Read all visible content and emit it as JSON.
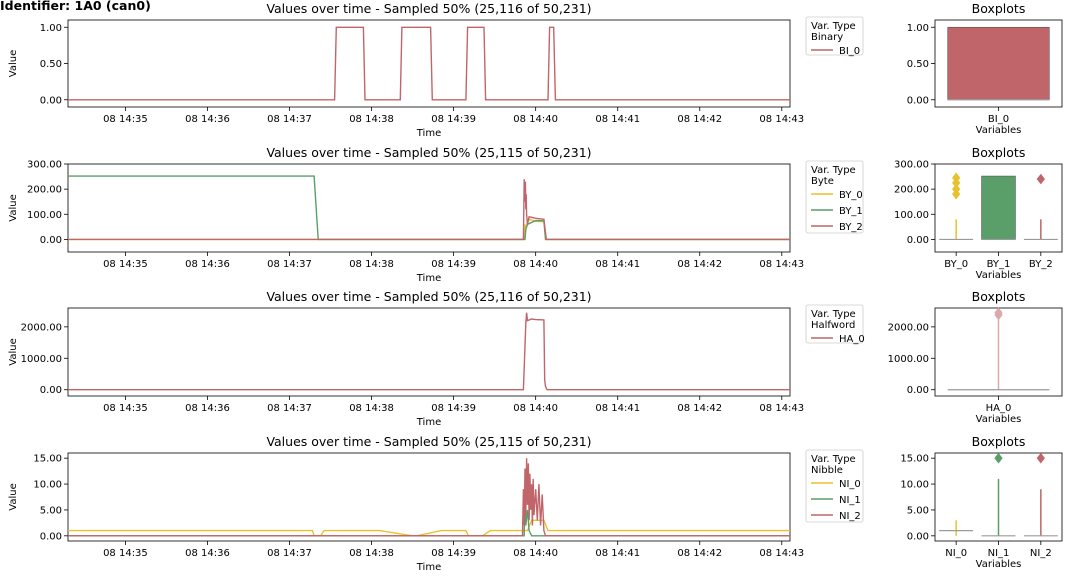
{
  "figure_title": "Identifier: 1A0 (can0)",
  "colors": {
    "yellow": "#e8c22e",
    "green": "#5a9e6a",
    "red": "#c0656a",
    "gray": "#9a9a9a",
    "red_light": "#dba9ab"
  },
  "chart_data": [
    {
      "type": "line",
      "title": "Values over time - Sampled 50% (25,116 of 50,231)",
      "xlabel": "Time",
      "ylabel": "Value",
      "x_unit": "minutes after 08 14:34",
      "x_ticks": [
        "08 14:35",
        "08 14:36",
        "08 14:37",
        "08 14:38",
        "08 14:39",
        "08 14:40",
        "08 14:41",
        "08 14:42",
        "08 14:43"
      ],
      "y_ticks": [
        "0.00",
        "0.50",
        "1.00"
      ],
      "ylim": [
        -0.1,
        1.1
      ],
      "legend": {
        "title": "Var. Type\nBinary",
        "position": "outside-right"
      },
      "series": [
        {
          "name": "BI_0",
          "color": "#c0656a",
          "points": [
            [
              0.3,
              0
            ],
            [
              3.55,
              0
            ],
            [
              3.57,
              1
            ],
            [
              3.9,
              1
            ],
            [
              3.92,
              0
            ],
            [
              4.35,
              0
            ],
            [
              4.37,
              1
            ],
            [
              4.72,
              1
            ],
            [
              4.74,
              0
            ],
            [
              5.15,
              0
            ],
            [
              5.17,
              1
            ],
            [
              5.37,
              1
            ],
            [
              5.39,
              0
            ],
            [
              6.15,
              0
            ],
            [
              6.17,
              1
            ],
            [
              6.22,
              1
            ],
            [
              6.24,
              0
            ],
            [
              9.1,
              0
            ]
          ]
        }
      ]
    },
    {
      "type": "box",
      "title": "Boxplots",
      "xlabel": "Variables",
      "y_ticks": [
        "0.00",
        "0.50",
        "1.00"
      ],
      "ylim": [
        -0.1,
        1.1
      ],
      "boxes": [
        {
          "name": "BI_0",
          "color": "#c0656a",
          "q1": 0,
          "q3": 1,
          "median": 0,
          "fliers": []
        }
      ]
    },
    {
      "type": "line",
      "title": "Values over time - Sampled 50% (25,115 of 50,231)",
      "xlabel": "Time",
      "ylabel": "Value",
      "x_unit": "minutes after 08 14:34",
      "x_ticks": [
        "08 14:35",
        "08 14:36",
        "08 14:37",
        "08 14:38",
        "08 14:39",
        "08 14:40",
        "08 14:41",
        "08 14:42",
        "08 14:43"
      ],
      "y_ticks": [
        "0.00",
        "100.00",
        "200.00",
        "300.00"
      ],
      "ylim": [
        -50,
        300
      ],
      "legend": {
        "title": "Var. Type\nByte",
        "position": "outside-right"
      },
      "series": [
        {
          "name": "BY_0",
          "color": "#e8c22e",
          "points": [
            [
              0.3,
              0
            ],
            [
              5.86,
              0
            ],
            [
              5.87,
              60
            ],
            [
              5.88,
              40
            ],
            [
              5.9,
              70
            ],
            [
              5.93,
              80
            ],
            [
              6.0,
              72
            ],
            [
              6.1,
              70
            ],
            [
              6.13,
              0
            ],
            [
              9.1,
              0
            ]
          ]
        },
        {
          "name": "BY_1",
          "color": "#5a9e6a",
          "points": [
            [
              0.3,
              252
            ],
            [
              3.3,
              252
            ],
            [
              3.35,
              0
            ],
            [
              5.87,
              0
            ],
            [
              5.88,
              40
            ],
            [
              5.9,
              60
            ],
            [
              6.0,
              75
            ],
            [
              6.1,
              74
            ],
            [
              6.12,
              0
            ],
            [
              9.1,
              0
            ]
          ]
        },
        {
          "name": "BY_2",
          "color": "#c0656a",
          "points": [
            [
              0.3,
              0
            ],
            [
              5.85,
              0
            ],
            [
              5.86,
              240
            ],
            [
              5.87,
              150
            ],
            [
              5.875,
              230
            ],
            [
              5.88,
              120
            ],
            [
              5.885,
              180
            ],
            [
              5.89,
              100
            ],
            [
              5.9,
              60
            ],
            [
              5.92,
              90
            ],
            [
              5.95,
              88
            ],
            [
              6.0,
              84
            ],
            [
              6.05,
              82
            ],
            [
              6.1,
              80
            ],
            [
              6.13,
              0
            ],
            [
              9.1,
              0
            ]
          ]
        }
      ]
    },
    {
      "type": "box",
      "title": "Boxplots",
      "xlabel": "Variables",
      "y_ticks": [
        "0.00",
        "100.00",
        "200.00",
        "300.00"
      ],
      "ylim": [
        -50,
        300
      ],
      "boxes": [
        {
          "name": "BY_0",
          "color": "#e8c22e",
          "q1": 0,
          "q3": 0,
          "median": 0,
          "whisker_hi": 80,
          "fliers": [
            180,
            200,
            225,
            245
          ]
        },
        {
          "name": "BY_1",
          "color": "#5a9e6a",
          "q1": 0,
          "q3": 252,
          "median": 0,
          "fliers": []
        },
        {
          "name": "BY_2",
          "color": "#c0656a",
          "q1": 0,
          "q3": 0,
          "median": 0,
          "whisker_hi": 80,
          "fliers": [
            240
          ]
        }
      ]
    },
    {
      "type": "line",
      "title": "Values over time - Sampled 50% (25,116 of 50,231)",
      "xlabel": "Time",
      "ylabel": "Value",
      "x_unit": "minutes after 08 14:34",
      "x_ticks": [
        "08 14:35",
        "08 14:36",
        "08 14:37",
        "08 14:38",
        "08 14:39",
        "08 14:40",
        "08 14:41",
        "08 14:42",
        "08 14:43"
      ],
      "y_ticks": [
        "0.00",
        "1000.00",
        "2000.00"
      ],
      "ylim": [
        -200,
        2600
      ],
      "legend": {
        "title": "Var. Type\nHalfword",
        "position": "outside-right"
      },
      "series": [
        {
          "name": "HA_0",
          "color": "#c0656a",
          "points": [
            [
              0.3,
              0
            ],
            [
              5.85,
              0
            ],
            [
              5.88,
              2100
            ],
            [
              5.89,
              2450
            ],
            [
              5.9,
              2200
            ],
            [
              5.95,
              2250
            ],
            [
              6.0,
              2230
            ],
            [
              6.1,
              2220
            ],
            [
              6.11,
              300
            ],
            [
              6.12,
              100
            ],
            [
              6.14,
              0
            ],
            [
              9.1,
              0
            ]
          ]
        }
      ]
    },
    {
      "type": "box",
      "title": "Boxplots",
      "xlabel": "Variables",
      "y_ticks": [
        "0.00",
        "1000.00",
        "2000.00"
      ],
      "ylim": [
        -200,
        2600
      ],
      "boxes": [
        {
          "name": "HA_0",
          "color": "#dba9ab",
          "q1": 0,
          "q3": 0,
          "median": 0,
          "whisker_hi": 2250,
          "fliers": [
            2380,
            2450
          ]
        }
      ]
    },
    {
      "type": "line",
      "title": "Values over time - Sampled 50% (25,115 of 50,231)",
      "xlabel": "Time",
      "ylabel": "Value",
      "x_unit": "minutes after 08 14:34",
      "x_ticks": [
        "08 14:35",
        "08 14:36",
        "08 14:37",
        "08 14:38",
        "08 14:39",
        "08 14:40",
        "08 14:41",
        "08 14:42",
        "08 14:43"
      ],
      "y_ticks": [
        "0.00",
        "5.00",
        "10.00",
        "15.00"
      ],
      "ylim": [
        -1,
        16
      ],
      "legend": {
        "title": "Var. Type\nNibble",
        "position": "outside-right"
      },
      "series": [
        {
          "name": "NI_0",
          "color": "#e8c22e",
          "points": [
            [
              0.3,
              1
            ],
            [
              3.28,
              1
            ],
            [
              3.3,
              0
            ],
            [
              3.38,
              0
            ],
            [
              3.42,
              1
            ],
            [
              4.1,
              1
            ],
            [
              4.5,
              0
            ],
            [
              4.55,
              0
            ],
            [
              4.85,
              1
            ],
            [
              5.15,
              1
            ],
            [
              5.18,
              0
            ],
            [
              5.35,
              0
            ],
            [
              5.45,
              1
            ],
            [
              5.9,
              1
            ],
            [
              5.95,
              3
            ],
            [
              6.1,
              3
            ],
            [
              6.15,
              1
            ],
            [
              9.1,
              1
            ]
          ]
        },
        {
          "name": "NI_1",
          "color": "#5a9e6a",
          "points": [
            [
              0.3,
              0
            ],
            [
              5.86,
              0
            ],
            [
              5.87,
              8
            ],
            [
              5.88,
              2
            ],
            [
              5.9,
              5
            ],
            [
              5.92,
              1
            ],
            [
              5.95,
              0
            ],
            [
              9.1,
              0
            ]
          ]
        },
        {
          "name": "NI_2",
          "color": "#c0656a",
          "points": [
            [
              0.3,
              0
            ],
            [
              5.84,
              0
            ],
            [
              5.85,
              9
            ],
            [
              5.86,
              2
            ],
            [
              5.87,
              13
            ],
            [
              5.88,
              4
            ],
            [
              5.89,
              15
            ],
            [
              5.9,
              6
            ],
            [
              5.91,
              14
            ],
            [
              5.92,
              3
            ],
            [
              5.93,
              12
            ],
            [
              5.94,
              5
            ],
            [
              5.95,
              10
            ],
            [
              5.96,
              2
            ],
            [
              5.97,
              11
            ],
            [
              5.98,
              4
            ],
            [
              6.0,
              9
            ],
            [
              6.02,
              3
            ],
            [
              6.04,
              10
            ],
            [
              6.06,
              2
            ],
            [
              6.08,
              8
            ],
            [
              6.1,
              1
            ],
            [
              6.12,
              0
            ],
            [
              9.1,
              0
            ]
          ]
        }
      ]
    },
    {
      "type": "box",
      "title": "Boxplots",
      "xlabel": "Variables",
      "y_ticks": [
        "0.00",
        "5.00",
        "10.00",
        "15.00"
      ],
      "ylim": [
        -1,
        16
      ],
      "boxes": [
        {
          "name": "NI_0",
          "color": "#e8c22e",
          "q1": 1,
          "q3": 1,
          "median": 1,
          "whisker_lo": 0,
          "whisker_hi": 3,
          "fliers": []
        },
        {
          "name": "NI_1",
          "color": "#5a9e6a",
          "q1": 0,
          "q3": 0,
          "median": 0,
          "whisker_hi": 11,
          "fliers": [
            15
          ]
        },
        {
          "name": "NI_2",
          "color": "#c0656a",
          "q1": 0,
          "q3": 0,
          "median": 0,
          "whisker_hi": 9,
          "fliers": [
            15
          ]
        }
      ]
    }
  ]
}
